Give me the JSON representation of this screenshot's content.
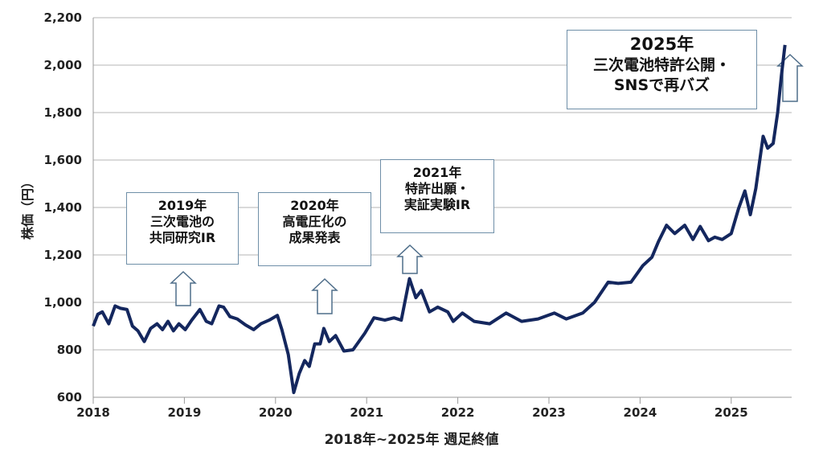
{
  "chart_data": {
    "type": "line",
    "title": "",
    "xlabel": "2018年~2025年 週足終値",
    "ylabel": "株価（円）",
    "xlim": [
      2018,
      2025.7
    ],
    "ylim": [
      600,
      2200
    ],
    "xticks": [
      "2018",
      "2019",
      "2020",
      "2021",
      "2022",
      "2023",
      "2024",
      "2025"
    ],
    "yticks": [
      "600",
      "800",
      "1,000",
      "1,200",
      "1,400",
      "1,600",
      "1,800",
      "2,000",
      "2,200"
    ],
    "grid": "horizontal",
    "line_color": "#14275e",
    "series": [
      {
        "name": "週足終値",
        "x": [
          2018.0,
          2018.05,
          2018.1,
          2018.17,
          2018.24,
          2018.3,
          2018.37,
          2018.43,
          2018.49,
          2018.56,
          2018.63,
          2018.7,
          2018.76,
          2018.82,
          2018.88,
          2018.94,
          2019.01,
          2019.08,
          2019.17,
          2019.24,
          2019.3,
          2019.38,
          2019.43,
          2019.5,
          2019.58,
          2019.67,
          2019.76,
          2019.84,
          2019.93,
          2020.02,
          2020.07,
          2020.14,
          2020.2,
          2020.26,
          2020.32,
          2020.37,
          2020.43,
          2020.49,
          2020.53,
          2020.59,
          2020.66,
          2020.75,
          2020.85,
          2020.98,
          2021.08,
          2021.2,
          2021.3,
          2021.38,
          2021.47,
          2021.54,
          2021.6,
          2021.69,
          2021.78,
          2021.89,
          2021.95,
          2022.05,
          2022.18,
          2022.35,
          2022.53,
          2022.7,
          2022.88,
          2023.06,
          2023.19,
          2023.37,
          2023.5,
          2023.65,
          2023.76,
          2023.9,
          2024.03,
          2024.13,
          2024.2,
          2024.29,
          2024.38,
          2024.49,
          2024.58,
          2024.66,
          2024.75,
          2024.82,
          2024.9,
          2025.0,
          2025.08,
          2025.15,
          2025.21,
          2025.27,
          2025.35,
          2025.4,
          2025.46,
          2025.51,
          2025.55,
          2025.59
        ],
        "y": [
          900,
          950,
          960,
          910,
          985,
          975,
          970,
          900,
          880,
          835,
          890,
          910,
          885,
          920,
          880,
          910,
          885,
          925,
          970,
          920,
          910,
          985,
          980,
          940,
          930,
          905,
          885,
          910,
          925,
          945,
          885,
          780,
          620,
          700,
          755,
          730,
          825,
          825,
          890,
          835,
          860,
          795,
          800,
          870,
          935,
          925,
          935,
          925,
          1100,
          1020,
          1050,
          960,
          980,
          960,
          920,
          955,
          920,
          910,
          955,
          920,
          930,
          955,
          930,
          955,
          1000,
          1085,
          1080,
          1085,
          1155,
          1190,
          1255,
          1325,
          1290,
          1325,
          1265,
          1320,
          1260,
          1275,
          1265,
          1290,
          1395,
          1470,
          1370,
          1480,
          1700,
          1650,
          1670,
          1800,
          1955,
          2085
        ]
      }
    ],
    "annotations": [
      {
        "lines": [
          "2019年",
          "三次電池の",
          "共同研究IR"
        ]
      },
      {
        "lines": [
          "2020年",
          "高電圧化の",
          "成果発表"
        ]
      },
      {
        "lines": [
          "2021年",
          "特許出願・",
          "実証実験IR"
        ]
      },
      {
        "lines": [
          "2025年",
          "三次電池特許公開・",
          "SNSで再バズ"
        ]
      }
    ]
  }
}
